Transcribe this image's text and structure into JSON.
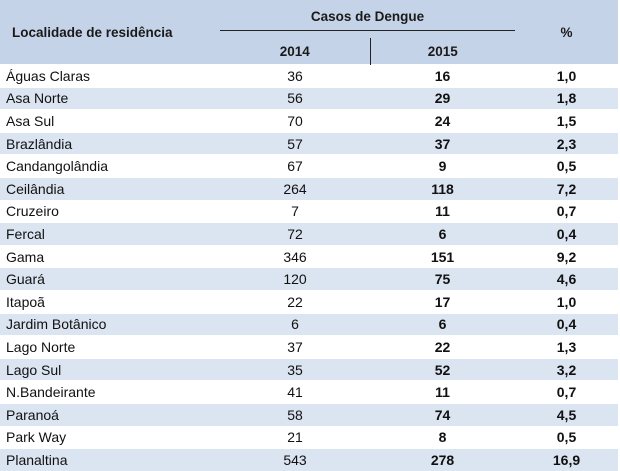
{
  "header": {
    "locality": "Localidade de residência",
    "casos": "Casos de Dengue",
    "percent": "%",
    "year1": "2014",
    "year2": "2015"
  },
  "rows": [
    {
      "name": "Águas Claras",
      "y2014": "36",
      "y2015": "16",
      "pct": "1,0"
    },
    {
      "name": "Asa Norte",
      "y2014": "56",
      "y2015": "29",
      "pct": "1,8"
    },
    {
      "name": "Asa Sul",
      "y2014": "70",
      "y2015": "24",
      "pct": "1,5"
    },
    {
      "name": "Brazlândia",
      "y2014": "57",
      "y2015": "37",
      "pct": "2,3"
    },
    {
      "name": "Candangolândia",
      "y2014": "67",
      "y2015": "9",
      "pct": "0,5"
    },
    {
      "name": "Ceilândia",
      "y2014": "264",
      "y2015": "118",
      "pct": "7,2"
    },
    {
      "name": "Cruzeiro",
      "y2014": "7",
      "y2015": "11",
      "pct": "0,7"
    },
    {
      "name": "Fercal",
      "y2014": "72",
      "y2015": "6",
      "pct": "0,4"
    },
    {
      "name": "Gama",
      "y2014": "346",
      "y2015": "151",
      "pct": "9,2"
    },
    {
      "name": "Guará",
      "y2014": "120",
      "y2015": "75",
      "pct": "4,6"
    },
    {
      "name": "Itapoã",
      "y2014": "22",
      "y2015": "17",
      "pct": "1,0"
    },
    {
      "name": "Jardim Botânico",
      "y2014": "6",
      "y2015": "6",
      "pct": "0,4"
    },
    {
      "name": "Lago Norte",
      "y2014": "37",
      "y2015": "22",
      "pct": "1,3"
    },
    {
      "name": "Lago Sul",
      "y2014": "35",
      "y2015": "52",
      "pct": "3,2"
    },
    {
      "name": "N.Bandeirante",
      "y2014": "41",
      "y2015": "11",
      "pct": "0,7"
    },
    {
      "name": "Paranoá",
      "y2014": "58",
      "y2015": "74",
      "pct": "4,5"
    },
    {
      "name": "Park Way",
      "y2014": "21",
      "y2015": "8",
      "pct": "0,5"
    },
    {
      "name": "Planaltina",
      "y2014": "543",
      "y2015": "278",
      "pct": "16,9"
    }
  ],
  "colors": {
    "header_bg": "#c5d3e8",
    "row_alt_bg": "#dbe4f1",
    "row_bg": "#ffffff"
  }
}
